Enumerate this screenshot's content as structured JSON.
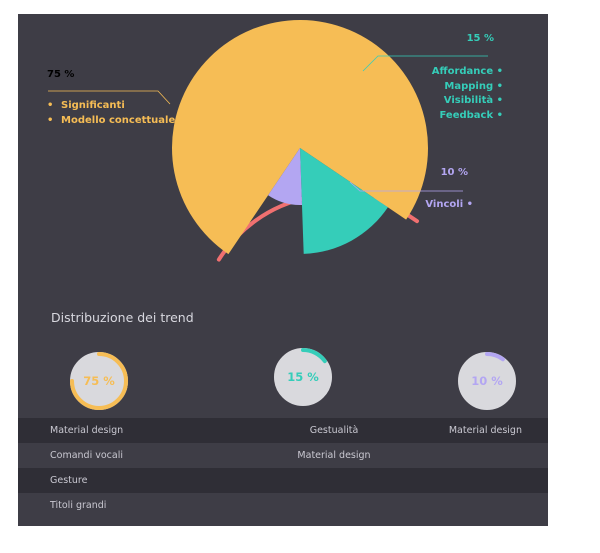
{
  "chart_data": [
    {
      "type": "pie",
      "title": "",
      "legend": "callouts",
      "slices": [
        {
          "label_pct": "75 %",
          "value": 75,
          "color": "#f6bd55",
          "items": [
            "Significanti",
            "Modello concettuale"
          ]
        },
        {
          "label_pct": "15 %",
          "value": 15,
          "color": "#35cdb9",
          "items": [
            "Affordance",
            "Mapping",
            "Visibilità",
            "Feedback"
          ]
        },
        {
          "label_pct": "10 %",
          "value": 10,
          "color": "#b3a6f2",
          "items": [
            "Vincoli"
          ]
        }
      ],
      "accent_arc_color": "#f07070"
    },
    {
      "type": "table",
      "title": "Distribuzione dei trend",
      "gauges": [
        {
          "label": "75 %",
          "value": 75,
          "color": "#f6bd55"
        },
        {
          "label": "15 %",
          "value": 15,
          "color": "#35cdb9"
        },
        {
          "label": "10 %",
          "value": 10,
          "color": "#b3a6f2"
        }
      ],
      "rows": [
        [
          "Material design",
          "Gestualità",
          "Material design"
        ],
        [
          "Comandi vocali",
          "Material design",
          ""
        ],
        [
          "Gesture",
          "",
          ""
        ],
        [
          "Titoli grandi",
          "",
          ""
        ]
      ]
    }
  ],
  "colors": {
    "background": "#3e3d46",
    "row_dark": "#2f2e36",
    "gauge_track": "#d9d9dd"
  }
}
